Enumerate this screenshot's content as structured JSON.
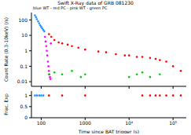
{
  "chart_data": [
    {
      "type": "scatter",
      "title": "Swift X-Ray data of GRB 081230",
      "subtitle": "blue WT - red PC - pink WT - green PC",
      "y_label": "Count Rate (0.3-10keV) (/s)",
      "log": true,
      "tick_labels": "y",
      "marker": "circle",
      "xlim": [
        60,
        200000
      ],
      "xticks": [
        100,
        1000,
        {
          "value": 10000,
          "label": "10⁴"
        },
        {
          "value": 100000,
          "label": "10⁵"
        }
      ],
      "ylim": [
        0.005,
        300
      ],
      "yticks": [
        0.01,
        0.1,
        1,
        10,
        100
      ],
      "series": [
        {
          "color": "#1e90ff",
          "x": [
            72,
            76,
            80,
            85,
            90,
            95,
            100,
            106,
            112,
            118
          ],
          "values": [
            200,
            150,
            110,
            80,
            60,
            45,
            35,
            28,
            22,
            18
          ]
        },
        {
          "color": "#ff00ff",
          "x": [
            122,
            126,
            130,
            134,
            138,
            142,
            146,
            150,
            154,
            158,
            162,
            166
          ],
          "values": [
            8,
            4,
            2,
            1,
            0.5,
            0.2,
            0.1,
            0.05,
            0.03,
            0.02,
            0.015,
            3
          ]
        },
        {
          "color": "#ff0000",
          "x": [
            150,
            170,
            200,
            250,
            300,
            400,
            500,
            700,
            1000,
            2000,
            3000,
            5000,
            8000,
            10000,
            15000,
            20000,
            30000,
            40000,
            50000,
            70000,
            100000,
            150000
          ],
          "values": [
            12,
            8,
            5,
            3.5,
            3,
            2.5,
            2,
            1.6,
            1.2,
            0.9,
            0.8,
            0.6,
            0.5,
            0.5,
            0.4,
            0.4,
            0.35,
            0.3,
            0.25,
            0.2,
            0.1,
            0.05
          ]
        },
        {
          "color": "#00cc00",
          "x": [
            150,
            200,
            300,
            500,
            800,
            1000,
            10000,
            15000,
            20000,
            30000,
            50000
          ],
          "values": [
            0.03,
            0.04,
            0.03,
            0.05,
            0.02,
            0.03,
            0.02,
            0.03,
            0.04,
            0.02,
            0.03
          ]
        }
      ]
    },
    {
      "type": "scatter",
      "x_label": "Time since BAT trigger (s)",
      "y_label": "Frac. Exp",
      "log": "x",
      "marker": "circle",
      "xlim": [
        60,
        200000
      ],
      "xticks": [
        100,
        1000,
        {
          "value": 10000,
          "label": "10⁴"
        },
        {
          "value": 100000,
          "label": "10⁵"
        }
      ],
      "ylim": [
        0,
        1.2
      ],
      "yticks": [
        0,
        0.5,
        1
      ],
      "series": [
        {
          "color": "#1e90ff",
          "x": [
            72,
            80,
            90,
            100,
            112
          ],
          "values": [
            1,
            1,
            1,
            1,
            1
          ]
        },
        {
          "color": "#ff0000",
          "x": [
            150,
            300,
            1000,
            20000,
            30000,
            40000,
            50000,
            70000,
            100000,
            150000
          ],
          "values": [
            1,
            1,
            1,
            1,
            1,
            1,
            1,
            1,
            1,
            1
          ]
        }
      ]
    }
  ]
}
